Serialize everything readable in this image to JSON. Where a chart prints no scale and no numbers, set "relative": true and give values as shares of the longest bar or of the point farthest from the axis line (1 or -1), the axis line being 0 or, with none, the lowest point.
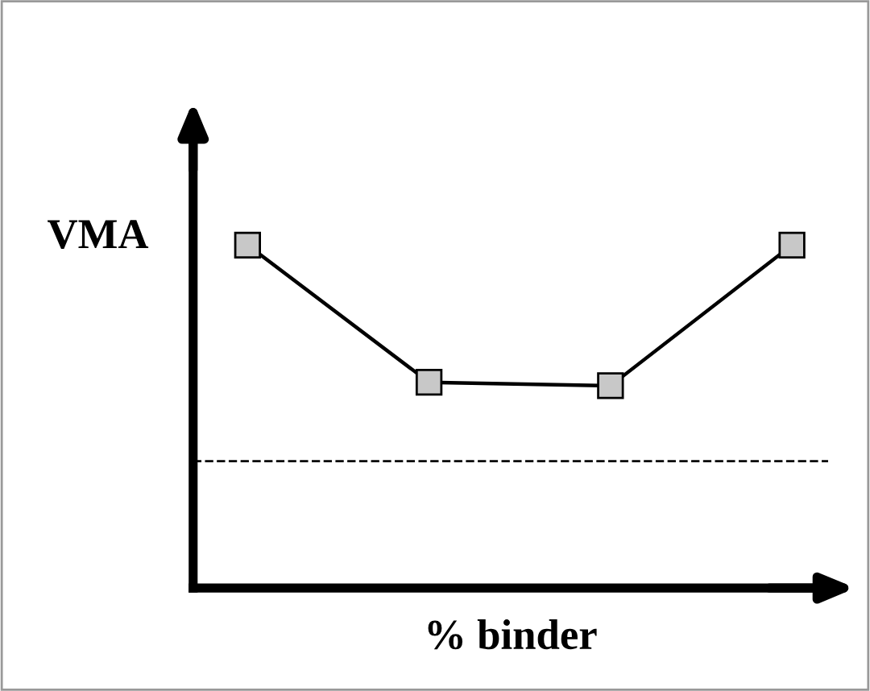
{
  "chart_data": {
    "type": "line",
    "relative": true,
    "xlabel": "% binder",
    "ylabel": "VMA",
    "categories": [
      null,
      null,
      null,
      null
    ],
    "series": [
      {
        "color": "#000000",
        "values": [
          1,
          0.6,
          0.59,
          1
        ]
      }
    ],
    "marker": "square",
    "line_style": "solid",
    "legend": false,
    "tick_labels": false,
    "ref_lines": [
      {
        "axis": "y",
        "value": 0.37,
        "color": "#000000",
        "line_style": "dashed"
      }
    ]
  }
}
